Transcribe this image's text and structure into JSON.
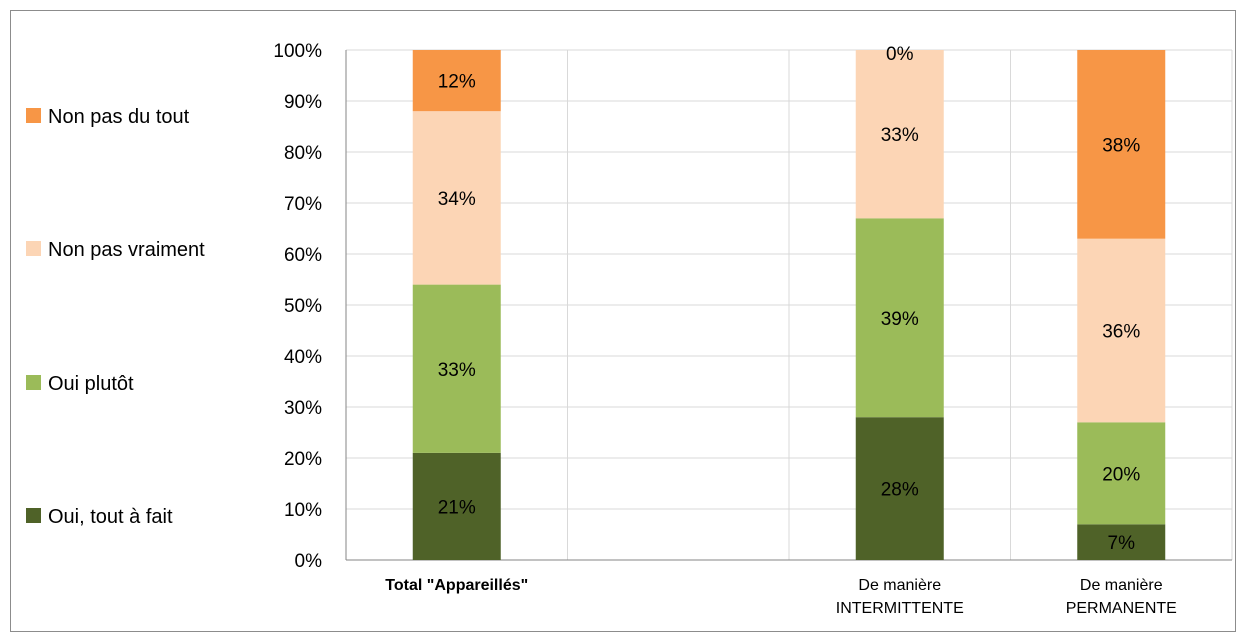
{
  "chart_data": {
    "type": "bar",
    "stacked": true,
    "percent_scale": true,
    "ylim": [
      0,
      100
    ],
    "yticks": [
      "0%",
      "10%",
      "20%",
      "30%",
      "40%",
      "50%",
      "60%",
      "70%",
      "80%",
      "90%",
      "100%"
    ],
    "categories": [
      [
        "Total \"Appareillés\""
      ],
      [
        "",
        ""
      ],
      [
        "De manière",
        "INTERMITTENTE"
      ],
      [
        "De manière",
        "PERMANENTE"
      ]
    ],
    "bold_categories": [
      0
    ],
    "series": [
      {
        "name": "Oui, tout à fait",
        "color": "#4f6228",
        "values": [
          21,
          null,
          28,
          7
        ],
        "labels": [
          "21%",
          "",
          "28%",
          "7%"
        ]
      },
      {
        "name": "Oui plutôt",
        "color": "#9bbb59",
        "values": [
          33,
          null,
          39,
          20
        ],
        "labels": [
          "33%",
          "",
          "39%",
          "20%"
        ]
      },
      {
        "name": "Non pas vraiment",
        "color": "#fcd5b5",
        "values": [
          34,
          null,
          33,
          36
        ],
        "labels": [
          "34%",
          "",
          "33%",
          "36%"
        ]
      },
      {
        "name": "Non pas du tout",
        "color": "#f79646",
        "values": [
          12,
          null,
          0,
          38
        ],
        "labels": [
          "12%",
          "",
          "0%",
          "38%"
        ]
      }
    ],
    "legend": {
      "position": "left",
      "order": [
        "Non pas du tout",
        "Non pas vraiment",
        "Oui plutôt",
        "Oui, tout à fait"
      ]
    },
    "grid": true,
    "gridline_color": "#d9d9d9"
  }
}
